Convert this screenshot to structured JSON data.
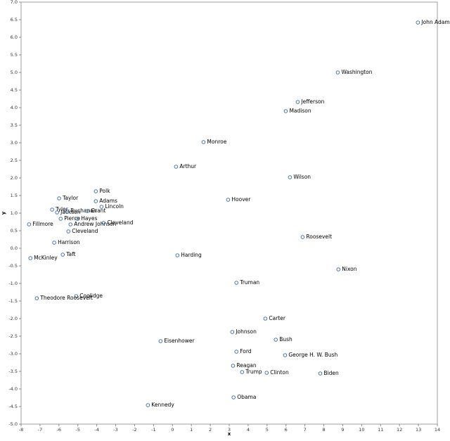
{
  "chart_data": {
    "type": "scatter",
    "color": "#4c78a8",
    "grid": false,
    "x_label": "x",
    "y_label": "y",
    "labels": [
      "John Adams",
      "Washington",
      "Jefferson",
      "Madison",
      "Monroe",
      "Arthur",
      "Wilson",
      "Polk",
      "Taylor",
      "Adams",
      "Hoover",
      "Lincoln",
      "Tyler",
      "Jackson",
      "Buchanan",
      "Grant",
      "Pierce",
      "Hayes",
      "Fillmore",
      "Andrew Johnson",
      "Cleveland",
      "Cleveland",
      "Harrison",
      "Roosevelt",
      "Taft",
      "McKinley",
      "Harding",
      "Nixon",
      "Truman",
      "Coolidge",
      "Theodore Roosevelt",
      "Carter",
      "Johnson",
      "Bush",
      "Eisenhower",
      "Ford",
      "George H. W. Bush",
      "Reagan",
      "Trump",
      "Clinton",
      "Biden",
      "Obama",
      "Kennedy"
    ],
    "x": [
      12.97,
      8.74,
      6.62,
      5.99,
      1.64,
      0.19,
      6.21,
      -4.05,
      -5.99,
      -4.05,
      2.94,
      -3.75,
      -6.36,
      -6.1,
      -5.58,
      -4.5,
      -5.91,
      -5.02,
      -7.58,
      -5.39,
      -3.64,
      -5.5,
      -6.25,
      6.88,
      -5.8,
      -7.51,
      0.26,
      8.77,
      3.38,
      -5.09,
      -7.17,
      4.91,
      3.16,
      5.46,
      -0.63,
      3.38,
      5.95,
      3.2,
      3.68,
      4.98,
      7.81,
      3.23,
      -1.3
    ],
    "values": [
      6.42,
      5.0,
      4.16,
      3.9,
      3.02,
      2.32,
      2.02,
      1.62,
      1.42,
      1.34,
      1.38,
      1.18,
      1.1,
      1.02,
      1.06,
      1.06,
      0.84,
      0.84,
      0.68,
      0.68,
      0.72,
      0.48,
      0.16,
      0.32,
      -0.18,
      -0.28,
      -0.2,
      -0.6,
      -0.98,
      -1.36,
      -1.42,
      -2.0,
      -2.38,
      -2.6,
      -2.64,
      -2.94,
      -3.04,
      -3.34,
      -3.52,
      -3.54,
      -3.56,
      -4.24,
      -4.46
    ],
    "xlim": [
      -8,
      14
    ],
    "xticks": [
      -8,
      -7,
      -6,
      -5,
      -4,
      -3,
      -2,
      -1,
      0,
      1,
      2,
      3,
      4,
      5,
      6,
      7,
      8,
      9,
      10,
      11,
      12,
      13,
      14
    ],
    "ylim": [
      -5,
      7
    ],
    "yticks": [
      {
        "value": -5,
        "label": "-5.0"
      },
      -4.5,
      {
        "value": -4,
        "label": "-4.0"
      },
      -3.5,
      {
        "value": -3,
        "label": "-3.0"
      },
      -2.5,
      {
        "value": -2,
        "label": "-2.0"
      },
      -1.5,
      {
        "value": -1,
        "label": "-1.0"
      },
      -0.5,
      {
        "value": 0,
        "label": "0.0"
      },
      0.5,
      {
        "value": 1,
        "label": "1.0"
      },
      1.5,
      {
        "value": 2,
        "label": "2.0"
      },
      2.5,
      {
        "value": 3,
        "label": "3.0"
      },
      3.5,
      {
        "value": 4,
        "label": "4.0"
      },
      4.5,
      {
        "value": 5,
        "label": "5.0"
      },
      5.5,
      {
        "value": 6,
        "label": "6.0"
      },
      6.5,
      {
        "value": 7,
        "label": "7.0"
      }
    ]
  }
}
